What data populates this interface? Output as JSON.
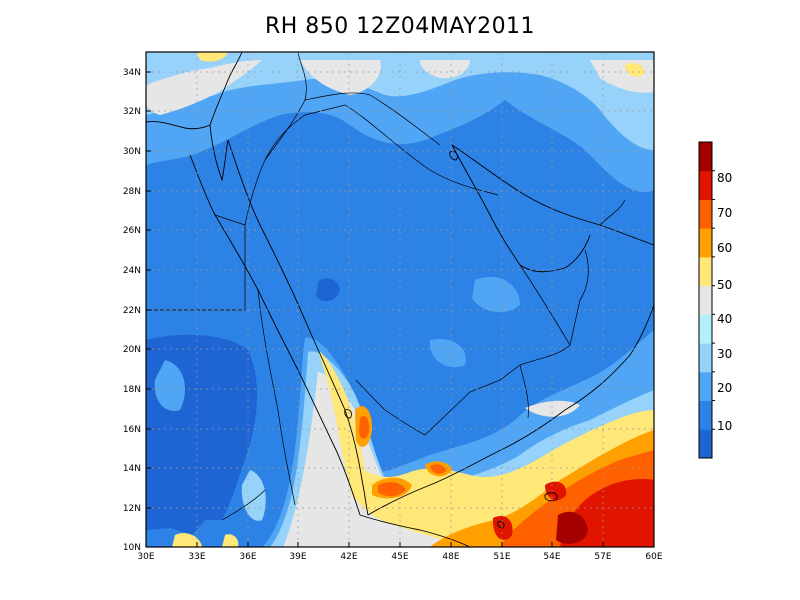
{
  "title": "RH 850 12Z04MAY2011",
  "map": {
    "lon_range": [
      30,
      60
    ],
    "lat_range": [
      10,
      35
    ],
    "x_ticks": [
      "30E",
      "33E",
      "36E",
      "39E",
      "42E",
      "45E",
      "48E",
      "51E",
      "54E",
      "57E",
      "60E"
    ],
    "y_ticks": [
      "10N",
      "12N",
      "14N",
      "16N",
      "18N",
      "20N",
      "22N",
      "24N",
      "26N",
      "28N",
      "30N",
      "32N",
      "34N"
    ],
    "grid": "dotted"
  },
  "colorbar": {
    "labels": [
      "10",
      "20",
      "30",
      "40",
      "50",
      "60",
      "70",
      "80"
    ],
    "colors": [
      "#1e64d2",
      "#2d82e6",
      "#50a5f5",
      "#96d2fa",
      "#b4f0fa",
      "#e6e6e6",
      "#ffe878",
      "#ffa000",
      "#ff6000",
      "#e11400",
      "#a50000"
    ]
  }
}
